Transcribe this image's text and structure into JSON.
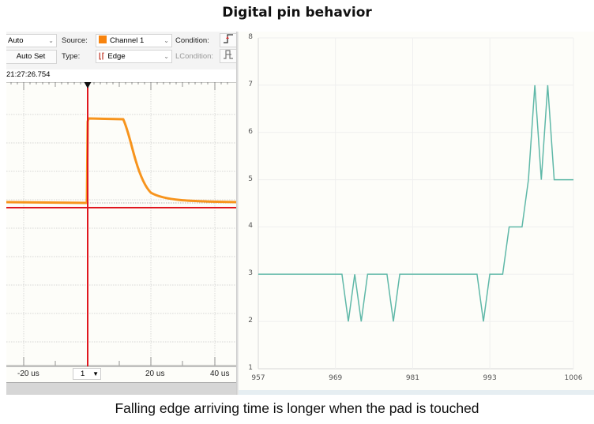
{
  "title": "Digital pin behavior",
  "caption": "Falling edge arriving time is longer when the pad is touched",
  "scope": {
    "toolbar": {
      "mode_value": "Auto",
      "auto_set_label": "Auto Set",
      "source_label": "Source:",
      "source_value": "Channel 1",
      "source_color": "#f7830e",
      "type_label": "Type:",
      "type_value": "Edge",
      "condition_label": "Condition:",
      "lcondition_label": "LCondition:"
    },
    "timestamp": "21:27:26.754",
    "x_labels": [
      "-20 us",
      "20 us",
      "40 us"
    ],
    "spin_value": "1",
    "trace_color": "#f7941d",
    "cursor_color": "#e0161e"
  },
  "chart_data": {
    "type": "line",
    "title": "",
    "xlabel": "",
    "ylabel": "",
    "x_ticks": [
      957,
      969,
      981,
      993,
      1006
    ],
    "y_ticks": [
      1,
      2,
      3,
      4,
      5,
      6,
      7,
      8
    ],
    "xlim": [
      957,
      1006
    ],
    "ylim": [
      1,
      8
    ],
    "grid": true,
    "line_color": "#5fb8a8",
    "x": [
      957,
      958,
      959,
      960,
      961,
      962,
      963,
      964,
      965,
      966,
      967,
      968,
      969,
      970,
      971,
      972,
      973,
      974,
      975,
      976,
      977,
      978,
      979,
      980,
      981,
      982,
      983,
      984,
      985,
      986,
      987,
      988,
      989,
      990,
      991,
      992,
      993,
      994,
      995,
      996,
      997,
      998,
      999,
      1000,
      1001,
      1002,
      1003,
      1004,
      1005,
      1006
    ],
    "values": [
      3,
      3,
      3,
      3,
      3,
      3,
      3,
      3,
      3,
      3,
      3,
      3,
      3,
      3,
      2,
      3,
      2,
      3,
      3,
      3,
      3,
      2,
      3,
      3,
      3,
      3,
      3,
      3,
      3,
      3,
      3,
      3,
      3,
      3,
      3,
      2,
      3,
      3,
      3,
      4,
      4,
      4,
      5,
      7,
      5,
      7,
      5,
      5,
      5,
      5
    ]
  }
}
